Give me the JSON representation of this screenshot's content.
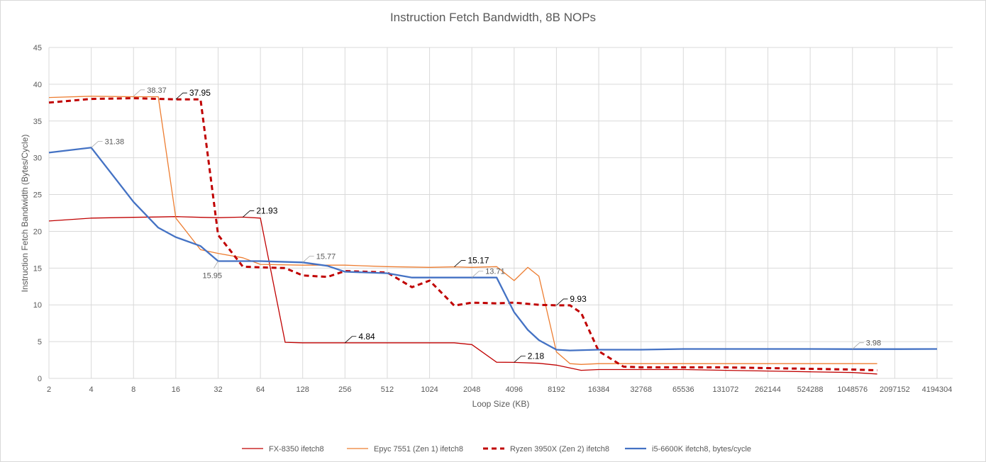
{
  "chart_data": {
    "type": "line",
    "title": "Instruction Fetch Bandwidth, 8B NOPs",
    "xlabel": "Loop Size (KB)",
    "ylabel": "Instruction Fetch Bandwidth (Bytes/Cycle)",
    "x_scale": "log2",
    "x_ticks": [
      "2",
      "4",
      "8",
      "16",
      "32",
      "64",
      "128",
      "256",
      "512",
      "1024",
      "2048",
      "4096",
      "8192",
      "16384",
      "32768",
      "65536",
      "131072",
      "262144",
      "524288",
      "1048576",
      "2097152",
      "4194304"
    ],
    "y_ticks": [
      "0",
      "5",
      "10",
      "15",
      "20",
      "25",
      "30",
      "35",
      "40",
      "45"
    ],
    "ylim": [
      0,
      45
    ],
    "grid": true,
    "legend_position": "bottom",
    "series": [
      {
        "name": "FX-8350 ifetch8",
        "color": "#c00000",
        "style": "solid-thin",
        "x": [
          2,
          4,
          8,
          12,
          16,
          24,
          32,
          48,
          64,
          96,
          128,
          256,
          512,
          1024,
          1536,
          2048,
          3072,
          4096,
          6144,
          8192,
          12288,
          16384,
          32768,
          65536,
          131072,
          262144,
          524288,
          1048576,
          1572864
        ],
        "y": [
          21.4,
          21.8,
          21.9,
          21.95,
          22.0,
          21.9,
          21.85,
          21.93,
          21.8,
          4.9,
          4.84,
          4.84,
          4.84,
          4.84,
          4.84,
          4.6,
          2.2,
          2.18,
          2.05,
          1.8,
          1.1,
          1.2,
          1.2,
          1.2,
          1.1,
          1.0,
          0.9,
          0.8,
          0.6
        ]
      },
      {
        "name": "Epyc 7551 (Zen 1) ifetch8",
        "color": "#ed7d31",
        "style": "solid-thin",
        "x": [
          2,
          4,
          8,
          12,
          16,
          24,
          32,
          48,
          64,
          128,
          256,
          512,
          1024,
          1536,
          2048,
          3072,
          4096,
          5120,
          6144,
          8192,
          10240,
          12288,
          16384,
          32768,
          65536,
          131072,
          262144,
          524288,
          1048576,
          1572864
        ],
        "y": [
          38.2,
          38.37,
          38.3,
          38.3,
          21.8,
          17.5,
          17.0,
          16.4,
          15.5,
          15.4,
          15.4,
          15.2,
          15.1,
          15.17,
          15.1,
          15.2,
          13.3,
          15.1,
          13.9,
          3.6,
          2.0,
          1.9,
          2.0,
          2.0,
          2.0,
          2.0,
          2.0,
          2.0,
          2.0,
          2.0
        ]
      },
      {
        "name": "Ryzen 3950X (Zen 2) ifetch8",
        "color": "#c00000",
        "style": "dashed",
        "x": [
          2,
          4,
          8,
          16,
          24,
          32,
          48,
          64,
          96,
          128,
          192,
          256,
          512,
          768,
          1024,
          1536,
          2048,
          3072,
          4096,
          6144,
          8192,
          10240,
          12288,
          16384,
          24576,
          32768,
          65536,
          131072,
          262144,
          524288,
          1048576,
          1572864
        ],
        "y": [
          37.5,
          38.0,
          38.1,
          37.95,
          37.95,
          19.5,
          15.2,
          15.1,
          15.0,
          14.0,
          13.8,
          14.6,
          14.4,
          12.4,
          13.3,
          9.9,
          10.3,
          10.2,
          10.3,
          10.0,
          9.93,
          9.93,
          8.9,
          3.7,
          1.6,
          1.5,
          1.5,
          1.5,
          1.4,
          1.3,
          1.2,
          1.1
        ]
      },
      {
        "name": "i5-6600K ifetch8, bytes/cycle",
        "color": "#4472c4",
        "style": "solid-thick",
        "x": [
          2,
          4,
          8,
          12,
          16,
          24,
          32,
          64,
          128,
          192,
          256,
          512,
          768,
          1024,
          2048,
          3072,
          4096,
          5120,
          6144,
          8192,
          10240,
          16384,
          32768,
          65536,
          131072,
          262144,
          524288,
          1048576,
          2097152,
          4194304
        ],
        "y": [
          30.7,
          31.38,
          24.0,
          20.5,
          19.2,
          18.0,
          15.95,
          15.95,
          15.77,
          15.3,
          14.5,
          14.3,
          13.71,
          13.71,
          13.71,
          13.71,
          9.0,
          6.6,
          5.2,
          3.9,
          3.8,
          3.9,
          3.9,
          4.0,
          4.0,
          4.0,
          4.0,
          3.98,
          3.98,
          4.0
        ]
      }
    ],
    "data_labels": [
      {
        "text": "38.37",
        "series": 1,
        "x": 8,
        "y": 38.37
      },
      {
        "text": "37.95",
        "series": 2,
        "x": 16,
        "y": 37.95
      },
      {
        "text": "31.38",
        "series": 3,
        "x": 4,
        "y": 31.38
      },
      {
        "text": "21.93",
        "series": 0,
        "x": 48,
        "y": 21.93
      },
      {
        "text": "15.95",
        "series": 3,
        "x": 32,
        "y": 15.95
      },
      {
        "text": "15.77",
        "series": 3,
        "x": 128,
        "y": 15.77
      },
      {
        "text": "15.17",
        "series": 1,
        "x": 1536,
        "y": 15.17
      },
      {
        "text": "13.71",
        "series": 3,
        "x": 2048,
        "y": 13.71
      },
      {
        "text": "9.93",
        "series": 2,
        "x": 8192,
        "y": 9.93
      },
      {
        "text": "4.84",
        "series": 0,
        "x": 256,
        "y": 4.84
      },
      {
        "text": "2.18",
        "series": 0,
        "x": 4096,
        "y": 2.18
      },
      {
        "text": "3.98",
        "series": 3,
        "x": 1048576,
        "y": 3.98
      }
    ]
  }
}
